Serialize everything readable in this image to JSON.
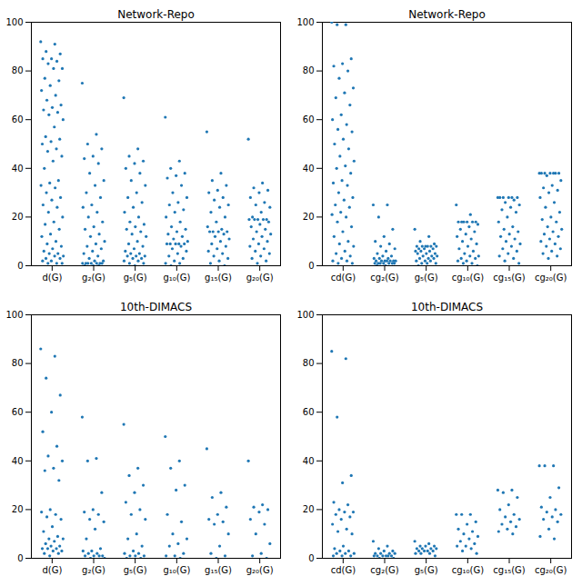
{
  "chart_data": [
    {
      "type": "scatter",
      "title": "Network-Repo",
      "color": "#1f77b4",
      "marker": "circle",
      "grid": false,
      "categories": [
        "d(G)",
        "g₂(G)",
        "g₅(G)",
        "g₁₀(G)",
        "g₁₅(G)",
        "g₂₀(G)"
      ],
      "ylim": [
        0,
        100
      ],
      "yticks": [
        0,
        20,
        40,
        60,
        80,
        100
      ],
      "values": [
        [
          92,
          91,
          88,
          87,
          85,
          85,
          84,
          83,
          81,
          81,
          77,
          76,
          74,
          72,
          70,
          68,
          66,
          65,
          64,
          63,
          62,
          60,
          57,
          53,
          52,
          51,
          50,
          48,
          47,
          45,
          43,
          40,
          35,
          34,
          33,
          32,
          30,
          28,
          27,
          25,
          24,
          22,
          20,
          18,
          17,
          15,
          13,
          12,
          10,
          9,
          8,
          7,
          6,
          5,
          5,
          4,
          4,
          3,
          3,
          2,
          2,
          1,
          1,
          1
        ],
        [
          75,
          54,
          50,
          48,
          45,
          44,
          42,
          38,
          35,
          33,
          30,
          28,
          25,
          24,
          22,
          20,
          18,
          16,
          15,
          13,
          12,
          10,
          9,
          8,
          7,
          6,
          5,
          4,
          3,
          2,
          2,
          1,
          1,
          1,
          1,
          1,
          1,
          1,
          0,
          0,
          0
        ],
        [
          69,
          48,
          45,
          43,
          42,
          40,
          38,
          35,
          33,
          30,
          28,
          26,
          24,
          22,
          20,
          18,
          17,
          16,
          15,
          14,
          13,
          12,
          10,
          9,
          8,
          7,
          6,
          5,
          5,
          4,
          4,
          4,
          3,
          3,
          2,
          2,
          1,
          1,
          0
        ],
        [
          61,
          43,
          40,
          38,
          37,
          36,
          33,
          30,
          28,
          26,
          25,
          23,
          22,
          20,
          18,
          16,
          15,
          14,
          13,
          12,
          11,
          10,
          9,
          9,
          9,
          9,
          9,
          8,
          7,
          6,
          5,
          4,
          3,
          2,
          1,
          1,
          0
        ],
        [
          55,
          38,
          35,
          33,
          31,
          30,
          28,
          27,
          25,
          24,
          22,
          20,
          18,
          16,
          15,
          14,
          14,
          14,
          14,
          13,
          12,
          11,
          10,
          9,
          8,
          7,
          6,
          5,
          4,
          3,
          2,
          1,
          0
        ],
        [
          52,
          34,
          32,
          31,
          30,
          28,
          26,
          25,
          24,
          22,
          20,
          19,
          19,
          19,
          19,
          19,
          18,
          17,
          16,
          15,
          14,
          13,
          12,
          11,
          10,
          9,
          8,
          7,
          6,
          5,
          4,
          3,
          2,
          1
        ]
      ]
    },
    {
      "type": "scatter",
      "title": "Network-Repo",
      "color": "#1f77b4",
      "marker": "circle",
      "grid": false,
      "categories": [
        "cd(G)",
        "cg₂(G)",
        "g₅(G)",
        "cg₁₀(G)",
        "cg₁₅(G)",
        "cg₂₀(G)"
      ],
      "ylim": [
        0,
        100
      ],
      "yticks": [
        0,
        20,
        40,
        60,
        80,
        100
      ],
      "values": [
        [
          100,
          99,
          99,
          85,
          83,
          82,
          80,
          77,
          73,
          71,
          69,
          66,
          62,
          60,
          58,
          56,
          55,
          52,
          50,
          48,
          45,
          43,
          41,
          40,
          38,
          35,
          34,
          33,
          30,
          28,
          27,
          25,
          24,
          22,
          21,
          20,
          18,
          16,
          14,
          12,
          10,
          9,
          8,
          6,
          5,
          4,
          3,
          2,
          2,
          1,
          1
        ],
        [
          25,
          25,
          20,
          15,
          12,
          10,
          9,
          8,
          7,
          6,
          5,
          4,
          4,
          3,
          3,
          3,
          2,
          2,
          2,
          2,
          2,
          2,
          2,
          1,
          1,
          1,
          1,
          1,
          1,
          1,
          0,
          0
        ],
        [
          15,
          12,
          10,
          9,
          8,
          8,
          8,
          8,
          8,
          8,
          7,
          7,
          7,
          6,
          6,
          6,
          5,
          5,
          5,
          4,
          4,
          4,
          3,
          3,
          3,
          2,
          2,
          2,
          1,
          1,
          1,
          0
        ],
        [
          25,
          21,
          18,
          18,
          18,
          18,
          18,
          18,
          17,
          16,
          15,
          14,
          13,
          12,
          11,
          10,
          9,
          8,
          7,
          6,
          5,
          4,
          4,
          3,
          3,
          2,
          2,
          1,
          1,
          0
        ],
        [
          28,
          28,
          28,
          28,
          28,
          28,
          27,
          26,
          25,
          24,
          23,
          22,
          20,
          18,
          16,
          15,
          14,
          13,
          12,
          11,
          10,
          9,
          8,
          7,
          6,
          5,
          4,
          3,
          2,
          1
        ],
        [
          38,
          38,
          38,
          38,
          38,
          38,
          38,
          37,
          35,
          33,
          32,
          31,
          30,
          28,
          26,
          24,
          22,
          20,
          19,
          18,
          16,
          15,
          14,
          13,
          12,
          11,
          10,
          9,
          8,
          7,
          6,
          5,
          4,
          3
        ]
      ]
    },
    {
      "type": "scatter",
      "title": "10th-DIMACS",
      "color": "#1f77b4",
      "marker": "circle",
      "grid": false,
      "categories": [
        "d(G)",
        "g₂(G)",
        "g₅(G)",
        "g₁₀(G)",
        "g₁₅(G)",
        "g₂₀(G)"
      ],
      "ylim": [
        0,
        100
      ],
      "yticks": [
        0,
        20,
        40,
        60,
        80,
        100
      ],
      "values": [
        [
          86,
          83,
          74,
          67,
          60,
          52,
          46,
          42,
          40,
          37,
          36,
          32,
          20,
          19,
          18,
          17,
          16,
          13,
          11,
          9,
          8,
          8,
          7,
          6,
          5,
          5,
          4,
          4,
          4,
          3,
          3,
          2,
          2,
          1
        ],
        [
          58,
          41,
          40,
          27,
          20,
          19,
          18,
          16,
          15,
          12,
          8,
          4,
          3,
          3,
          2,
          2,
          1,
          1,
          1,
          1,
          0,
          0
        ],
        [
          55,
          37,
          34,
          30,
          27,
          23,
          20,
          18,
          16,
          10,
          8,
          5,
          3,
          2,
          2,
          1,
          1,
          1,
          0,
          0
        ],
        [
          50,
          40,
          37,
          30,
          28,
          18,
          15,
          10,
          8,
          6,
          5,
          2,
          1,
          1,
          0
        ],
        [
          45,
          27,
          25,
          21,
          18,
          16,
          15,
          14,
          10,
          5,
          2,
          1,
          0
        ],
        [
          40,
          22,
          21,
          20,
          19,
          16,
          14,
          10,
          6,
          2,
          1,
          0
        ]
      ]
    },
    {
      "type": "scatter",
      "title": "10th-DIMACS",
      "color": "#1f77b4",
      "marker": "circle",
      "grid": false,
      "categories": [
        "cd(G)",
        "cg₂(G)",
        "g₅(G)",
        "cg₁₀(G)",
        "cg₁₅(G)",
        "cg₂₀(G)"
      ],
      "ylim": [
        0,
        100
      ],
      "yticks": [
        0,
        20,
        40,
        60,
        80,
        100
      ],
      "values": [
        [
          85,
          82,
          58,
          34,
          31,
          23,
          22,
          20,
          19,
          19,
          18,
          17,
          16,
          14,
          12,
          11,
          10,
          5,
          4,
          3,
          3,
          2,
          2,
          2,
          1,
          1,
          1
        ],
        [
          7,
          5,
          4,
          3,
          3,
          2,
          2,
          2,
          2,
          1,
          1,
          1,
          1,
          1,
          1,
          0,
          0
        ],
        [
          7,
          6,
          5,
          5,
          5,
          4,
          4,
          4,
          4,
          3,
          3,
          3,
          3,
          2,
          2,
          2,
          1
        ],
        [
          18,
          18,
          18,
          15,
          14,
          12,
          11,
          10,
          9,
          8,
          7,
          6,
          5,
          5,
          4,
          3,
          2
        ],
        [
          28,
          28,
          27,
          25,
          22,
          20,
          18,
          17,
          16,
          15,
          14,
          13,
          12,
          11,
          10
        ],
        [
          38,
          38,
          38,
          29,
          25,
          21,
          20,
          19,
          18,
          17,
          16,
          15,
          12,
          9,
          8
        ]
      ]
    }
  ]
}
